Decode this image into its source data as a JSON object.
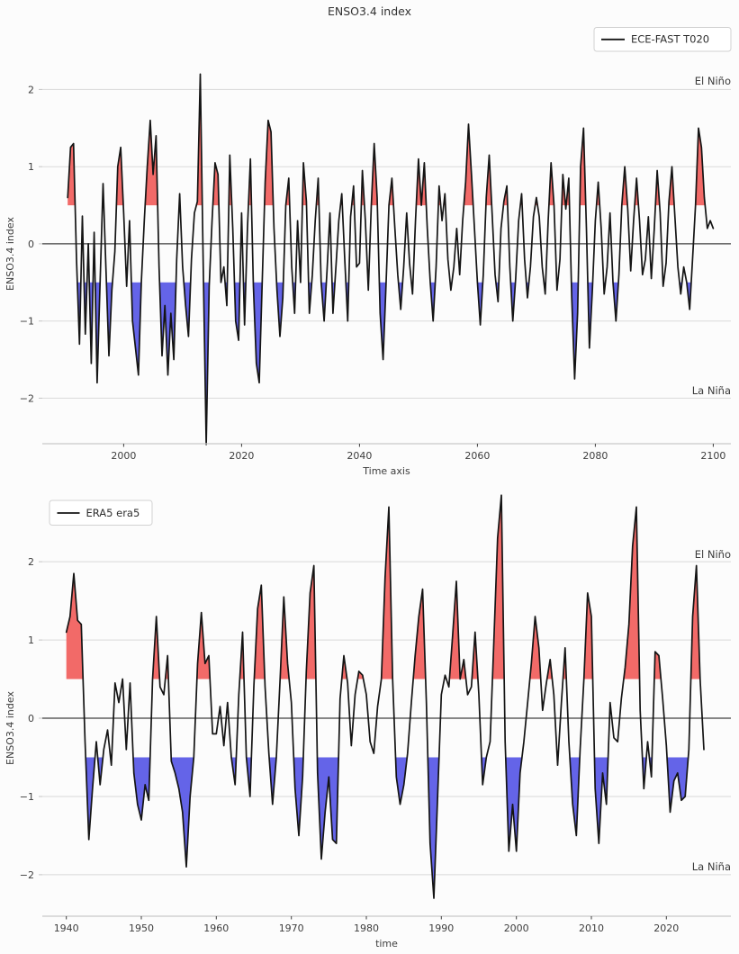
{
  "figure": {
    "background": "#fcfcfc"
  },
  "chart_data": [
    {
      "type": "line",
      "id": "ece-fast",
      "title": "ENSO3.4 index",
      "xlabel": "Time axis",
      "ylabel": "ENSO3.4 index",
      "legend": {
        "label": "ECE-FAST T020",
        "position": "upper right"
      },
      "annotations": [
        {
          "text": "El Niño",
          "color": "#ff0000",
          "position": "upper right"
        },
        {
          "text": "La Niña",
          "color": "#0000ff",
          "position": "lower right"
        }
      ],
      "thresholds": {
        "el_nino": 0.5,
        "la_nina": -0.5
      },
      "colors": {
        "line": "#141414",
        "fill_above": "#f26a68",
        "fill_below": "#6464e8",
        "zero_line": "#3f3f3f",
        "grid": "#d9d9d9"
      },
      "x_ticks": [
        2000,
        2020,
        2040,
        2060,
        2080,
        2100
      ],
      "y_ticks": [
        -2,
        -1,
        0,
        1,
        2
      ],
      "xlim": [
        1986.2,
        2103.0
      ],
      "ylim": [
        -2.59,
        2.32
      ],
      "grid_on": true,
      "series": {
        "name": "ECE-FAST T020",
        "x_start": 1990.5,
        "dx": 0.5,
        "values": [
          0.6,
          1.25,
          1.3,
          -0.2,
          -1.3,
          0.36,
          -1.17,
          0,
          -1.55,
          0.15,
          -1.8,
          -0.5,
          0.78,
          -0.32,
          -1.45,
          -0.6,
          -0.1,
          1.0,
          1.25,
          0.4,
          -0.55,
          0.3,
          -1.0,
          -1.35,
          -1.7,
          -0.5,
          0.3,
          1.0,
          1.6,
          0.9,
          1.4,
          -0.3,
          -1.45,
          -0.8,
          -1.7,
          -0.9,
          -1.5,
          -0.2,
          0.65,
          -0.3,
          -0.8,
          -1.2,
          -0.2,
          0.4,
          0.55,
          2.2,
          -0.3,
          -2.6,
          -0.55,
          0.3,
          1.05,
          0.9,
          -0.5,
          -0.3,
          -0.8,
          1.15,
          0.2,
          -1.0,
          -1.25,
          0.4,
          -1.05,
          0.2,
          1.1,
          -0.55,
          -1.55,
          -1.8,
          -0.5,
          0.8,
          1.6,
          1.45,
          0.2,
          -0.6,
          -1.2,
          -0.7,
          0.5,
          0.85,
          -0.3,
          -0.9,
          0.3,
          -0.5,
          1.05,
          0.55,
          -0.9,
          -0.4,
          0.3,
          0.85,
          -0.5,
          -1.0,
          -0.35,
          0.4,
          -0.9,
          -0.3,
          0.3,
          0.65,
          -0.2,
          -1.0,
          0.35,
          0.75,
          -0.3,
          -0.25,
          0.95,
          0.3,
          -0.6,
          0.5,
          1.3,
          0.6,
          -0.9,
          -1.5,
          -0.55,
          0.5,
          0.85,
          0.2,
          -0.4,
          -0.85,
          -0.3,
          0.4,
          -0.25,
          -0.65,
          0.3,
          1.1,
          0.5,
          1.05,
          0.2,
          -0.5,
          -1.0,
          -0.3,
          0.75,
          0.3,
          0.65,
          -0.2,
          -0.6,
          -0.3,
          0.2,
          -0.4,
          0.3,
          0.8,
          1.55,
          0.9,
          0.2,
          -0.5,
          -1.05,
          -0.4,
          0.6,
          1.15,
          0.4,
          -0.4,
          -0.75,
          0.2,
          0.55,
          0.75,
          -0.3,
          -1.0,
          -0.45,
          0.3,
          0.65,
          -0.2,
          -0.7,
          -0.3,
          0.35,
          0.6,
          0.35,
          -0.3,
          -0.65,
          0.3,
          1.05,
          0.5,
          -0.6,
          -0.2,
          0.9,
          0.45,
          0.85,
          -0.7,
          -1.75,
          -0.9,
          1.0,
          1.5,
          0.2,
          -1.35,
          -0.6,
          0.3,
          0.8,
          0.2,
          -0.65,
          -0.3,
          0.4,
          -0.5,
          -1.0,
          -0.4,
          0.5,
          1.0,
          0.45,
          -0.35,
          0.3,
          0.85,
          0.3,
          -0.4,
          -0.2,
          0.35,
          -0.45,
          0.2,
          0.95,
          0.4,
          -0.55,
          -0.25,
          0.55,
          1.0,
          0.35,
          -0.3,
          -0.65,
          -0.3,
          -0.5,
          -0.85,
          -0.2,
          0.5,
          1.5,
          1.25,
          0.6,
          0.2,
          0.3,
          0.2
        ]
      }
    },
    {
      "type": "line",
      "id": "era5",
      "title": "",
      "xlabel": "time",
      "ylabel": "ENSO3.4 index",
      "legend": {
        "label": "ERA5 era5",
        "position": "upper left"
      },
      "annotations": [
        {
          "text": "El Niño",
          "color": "#ff0000",
          "position": "upper right"
        },
        {
          "text": "La Niña",
          "color": "#0000ff",
          "position": "lower right"
        }
      ],
      "thresholds": {
        "el_nino": 0.5,
        "la_nina": -0.5
      },
      "colors": {
        "line": "#141414",
        "fill_above": "#f26a68",
        "fill_below": "#6464e8",
        "zero_line": "#3f3f3f",
        "grid": "#d9d9d9"
      },
      "x_ticks": [
        1940,
        1950,
        1960,
        1970,
        1980,
        1990,
        2000,
        2010,
        2020
      ],
      "y_ticks": [
        -2,
        -1,
        0,
        1,
        2
      ],
      "xlim": [
        1936.8,
        2028.6
      ],
      "ylim": [
        -2.53,
        2.91
      ],
      "grid_on": true,
      "series": {
        "name": "ERA5 era5",
        "x_start": 1940.0,
        "dx": 0.5,
        "values": [
          1.1,
          1.3,
          1.85,
          1.25,
          1.2,
          -0.3,
          -1.55,
          -0.9,
          -0.3,
          -0.85,
          -0.4,
          -0.15,
          -0.6,
          0.45,
          0.2,
          0.5,
          -0.4,
          0.45,
          -0.7,
          -1.1,
          -1.3,
          -0.85,
          -1.05,
          0.5,
          1.3,
          0.4,
          0.3,
          0.8,
          -0.55,
          -0.7,
          -0.9,
          -1.2,
          -1.9,
          -1.0,
          -0.5,
          0.7,
          1.35,
          0.7,
          0.8,
          -0.2,
          -0.2,
          0.15,
          -0.35,
          0.2,
          -0.5,
          -0.85,
          0.3,
          1.1,
          -0.5,
          -1.0,
          0.4,
          1.4,
          1.7,
          0.4,
          -0.45,
          -1.1,
          -0.5,
          0.5,
          1.55,
          0.7,
          0.2,
          -0.9,
          -1.5,
          -0.75,
          0.6,
          1.6,
          1.95,
          -0.7,
          -1.8,
          -1.2,
          -0.75,
          -1.55,
          -1.6,
          0.25,
          0.8,
          0.45,
          -0.35,
          0.3,
          0.6,
          0.55,
          0.3,
          -0.3,
          -0.45,
          0.15,
          0.5,
          1.8,
          2.7,
          0.5,
          -0.75,
          -1.1,
          -0.85,
          -0.45,
          0.2,
          0.8,
          1.3,
          1.65,
          0.2,
          -1.6,
          -2.3,
          -1.0,
          0.3,
          0.55,
          0.4,
          1.05,
          1.75,
          0.5,
          0.75,
          0.3,
          0.4,
          1.1,
          0.3,
          -0.85,
          -0.5,
          -0.3,
          1.0,
          2.3,
          2.85,
          -0.3,
          -1.7,
          -1.1,
          -1.7,
          -0.7,
          -0.3,
          0.2,
          0.7,
          1.3,
          0.9,
          0.1,
          0.45,
          0.75,
          0.3,
          -0.6,
          0.2,
          0.9,
          -0.3,
          -1.1,
          -1.5,
          -0.4,
          0.5,
          1.6,
          1.3,
          -0.9,
          -1.6,
          -0.7,
          -1.1,
          0.2,
          -0.25,
          -0.3,
          0.25,
          0.65,
          1.2,
          2.2,
          2.7,
          0.1,
          -0.9,
          -0.3,
          -0.75,
          0.85,
          0.8,
          0.25,
          -0.35,
          -1.2,
          -0.8,
          -0.7,
          -1.05,
          -1.0,
          -0.4,
          1.3,
          1.95,
          0.5,
          -0.4
        ]
      }
    }
  ]
}
